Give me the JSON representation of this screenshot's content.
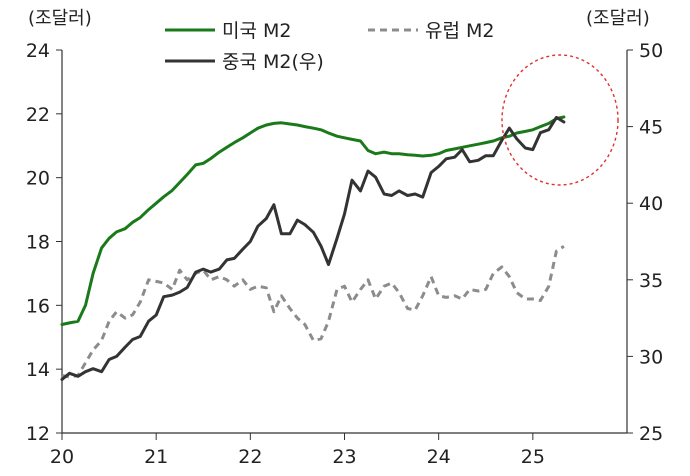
{
  "chart_data": {
    "type": "line",
    "left_axis_unit": "(조달러)",
    "right_axis_unit": "(조달러)",
    "x_ticks": [
      "20",
      "21",
      "22",
      "23",
      "24",
      "25"
    ],
    "xlim": [
      2020.0,
      2026.0
    ],
    "left_ylim": [
      12,
      24
    ],
    "left_yticks": [
      "12",
      "14",
      "16",
      "18",
      "20",
      "22",
      "24"
    ],
    "right_ylim": [
      25,
      50
    ],
    "right_yticks": [
      "25",
      "30",
      "35",
      "40",
      "45",
      "50"
    ],
    "grid": false,
    "legend_position": "top",
    "annotation": "dashed red circle around the 2024-2025 peak",
    "series": [
      {
        "name": "미국 M2",
        "axis": "left",
        "color": "#1a7a1a",
        "style": "solid",
        "x": [
          2020.0,
          2020.08,
          2020.17,
          2020.25,
          2020.33,
          2020.42,
          2020.5,
          2020.58,
          2020.67,
          2020.75,
          2020.83,
          2020.92,
          2021.0,
          2021.08,
          2021.17,
          2021.25,
          2021.33,
          2021.42,
          2021.5,
          2021.58,
          2021.67,
          2021.75,
          2021.83,
          2021.92,
          2022.0,
          2022.08,
          2022.17,
          2022.25,
          2022.33,
          2022.42,
          2022.5,
          2022.58,
          2022.67,
          2022.75,
          2022.83,
          2022.92,
          2023.0,
          2023.08,
          2023.17,
          2023.25,
          2023.33,
          2023.42,
          2023.5,
          2023.58,
          2023.67,
          2023.75,
          2023.83,
          2023.92,
          2024.0,
          2024.08,
          2024.17,
          2024.25,
          2024.33,
          2024.42,
          2024.5,
          2024.58,
          2024.67,
          2024.75,
          2024.83,
          2024.92,
          2025.0,
          2025.08,
          2025.17,
          2025.25,
          2025.33
        ],
        "values": [
          15.4,
          15.45,
          15.5,
          16.0,
          17.0,
          17.8,
          18.1,
          18.3,
          18.4,
          18.6,
          18.75,
          19.0,
          19.2,
          19.4,
          19.6,
          19.85,
          20.1,
          20.4,
          20.45,
          20.6,
          20.8,
          20.95,
          21.1,
          21.25,
          21.4,
          21.55,
          21.65,
          21.7,
          21.72,
          21.68,
          21.65,
          21.6,
          21.55,
          21.5,
          21.4,
          21.3,
          21.25,
          21.2,
          21.15,
          20.85,
          20.75,
          20.8,
          20.75,
          20.75,
          20.72,
          20.7,
          20.68,
          20.7,
          20.75,
          20.85,
          20.9,
          20.95,
          21.0,
          21.05,
          21.1,
          21.15,
          21.25,
          21.3,
          21.4,
          21.45,
          21.5,
          21.6,
          21.7,
          21.85,
          21.9
        ]
      },
      {
        "name": "유럽 M2",
        "axis": "left",
        "color": "#8c8c8c",
        "style": "dashed",
        "x": [
          2020.0,
          2020.08,
          2020.17,
          2020.25,
          2020.33,
          2020.42,
          2020.5,
          2020.58,
          2020.67,
          2020.75,
          2020.83,
          2020.92,
          2021.0,
          2021.08,
          2021.17,
          2021.25,
          2021.33,
          2021.42,
          2021.5,
          2021.58,
          2021.67,
          2021.75,
          2021.83,
          2021.92,
          2022.0,
          2022.08,
          2022.17,
          2022.25,
          2022.33,
          2022.42,
          2022.5,
          2022.58,
          2022.67,
          2022.75,
          2022.83,
          2022.92,
          2023.0,
          2023.08,
          2023.17,
          2023.25,
          2023.33,
          2023.42,
          2023.5,
          2023.58,
          2023.67,
          2023.75,
          2023.83,
          2023.92,
          2024.0,
          2024.08,
          2024.17,
          2024.25,
          2024.33,
          2024.42,
          2024.5,
          2024.58,
          2024.67,
          2024.75,
          2024.83,
          2024.92,
          2025.0,
          2025.08,
          2025.17,
          2025.25,
          2025.33
        ],
        "values": [
          13.8,
          13.75,
          13.8,
          14.2,
          14.6,
          14.9,
          15.5,
          15.8,
          15.6,
          15.7,
          16.1,
          16.8,
          16.75,
          16.7,
          16.5,
          17.1,
          16.8,
          17.0,
          17.1,
          16.8,
          16.9,
          16.8,
          16.6,
          16.8,
          16.5,
          16.6,
          16.55,
          15.8,
          16.3,
          15.9,
          15.6,
          15.4,
          14.9,
          14.95,
          15.5,
          16.5,
          16.6,
          16.1,
          16.5,
          16.8,
          16.2,
          16.6,
          16.7,
          16.4,
          15.9,
          15.85,
          16.3,
          16.9,
          16.3,
          16.25,
          16.3,
          16.2,
          16.5,
          16.45,
          16.5,
          17.0,
          17.2,
          16.9,
          16.4,
          16.2,
          16.2,
          16.15,
          16.6,
          17.7,
          17.85
        ]
      },
      {
        "name": "중국 M2(우)",
        "axis": "right",
        "color": "#333333",
        "style": "solid",
        "x": [
          2020.0,
          2020.08,
          2020.17,
          2020.25,
          2020.33,
          2020.42,
          2020.5,
          2020.58,
          2020.67,
          2020.75,
          2020.83,
          2020.92,
          2021.0,
          2021.08,
          2021.17,
          2021.25,
          2021.33,
          2021.42,
          2021.5,
          2021.58,
          2021.67,
          2021.75,
          2021.83,
          2021.92,
          2022.0,
          2022.08,
          2022.17,
          2022.25,
          2022.33,
          2022.42,
          2022.5,
          2022.58,
          2022.67,
          2022.75,
          2022.83,
          2022.92,
          2023.0,
          2023.08,
          2023.17,
          2023.25,
          2023.33,
          2023.42,
          2023.5,
          2023.58,
          2023.67,
          2023.75,
          2023.83,
          2023.92,
          2024.0,
          2024.08,
          2024.17,
          2024.25,
          2024.33,
          2024.42,
          2024.5,
          2024.58,
          2024.67,
          2024.75,
          2024.83,
          2024.92,
          2025.0,
          2025.08,
          2025.17,
          2025.25,
          2025.33
        ],
        "values": [
          28.5,
          28.9,
          28.7,
          29.0,
          29.2,
          29.0,
          29.8,
          30.0,
          30.6,
          31.1,
          31.3,
          32.3,
          32.7,
          33.9,
          34.0,
          34.2,
          34.5,
          35.5,
          35.7,
          35.5,
          35.7,
          36.3,
          36.4,
          37.0,
          37.5,
          38.5,
          39.0,
          39.9,
          38.0,
          38.0,
          38.9,
          38.6,
          38.1,
          37.2,
          36.0,
          37.7,
          39.3,
          41.5,
          40.8,
          42.1,
          41.7,
          40.6,
          40.5,
          40.8,
          40.5,
          40.6,
          40.4,
          42.0,
          42.4,
          42.9,
          43.0,
          43.5,
          42.7,
          42.8,
          43.1,
          43.1,
          44.1,
          44.9,
          44.2,
          43.6,
          43.5,
          44.6,
          44.8,
          45.6,
          45.3
        ]
      }
    ]
  }
}
